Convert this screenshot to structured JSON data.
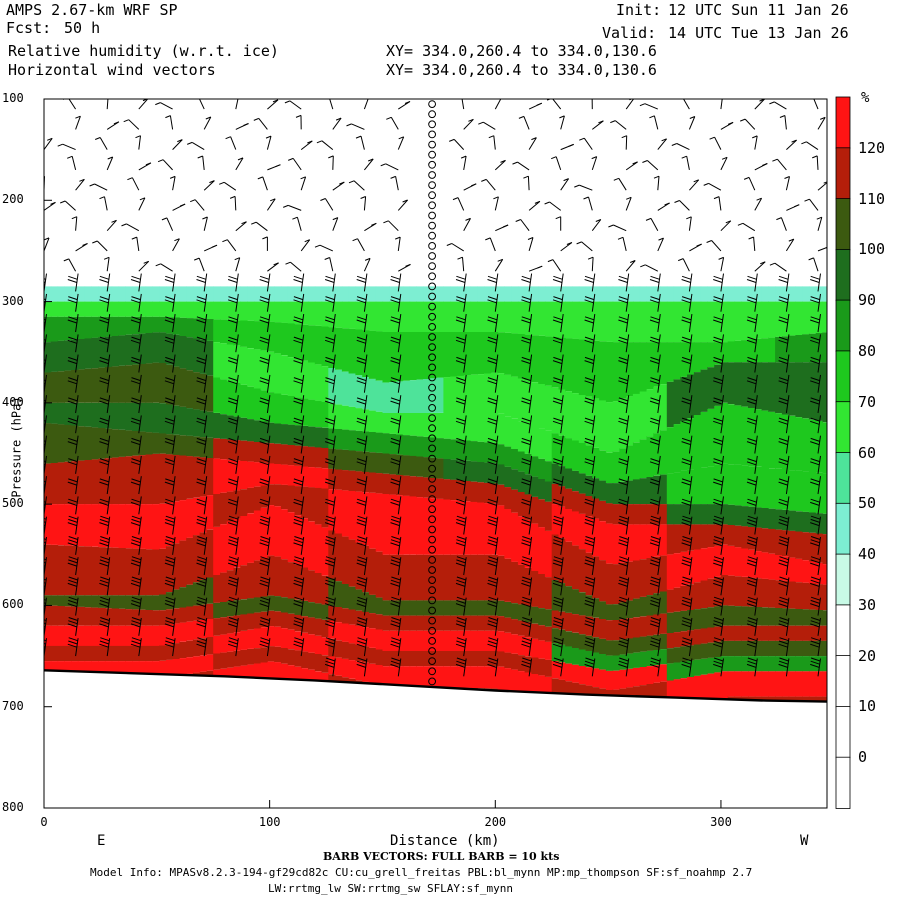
{
  "header": {
    "model_title": "AMPS 2.67-km WRF SP",
    "forecast_label": "Fcst:",
    "forecast_hours": "50 h",
    "init_label": "Init:",
    "init_time": "12 UTC Sun 11 Jan 26",
    "valid_label": "Valid:",
    "valid_time": "14 UTC Tue 13 Jan 26",
    "field_1": "Relative humidity (w.r.t. ice)",
    "field_2": "Horizontal wind vectors",
    "xy_1": "XY= 334.0,260.4 to 334.0,130.6",
    "xy_2": "XY= 334.0,260.4 to 334.0,130.6"
  },
  "footer": {
    "barb_note": "BARB VECTORS:  FULL BARB = 10 kts",
    "model_info_1": "Model Info: MPASv8.2.3-194-gf29cd82c CU:cu_grell_freitas PBL:bl_mynn MP:mp_thompson SF:sf_noahmp 2.7",
    "model_info_2": "LW:rrtmg_lw SW:rrtmg_sw SFLAY:sf_mynn"
  },
  "chart_data": {
    "type": "heatmap",
    "title": "Relative humidity (w.r.t. ice)",
    "xlabel": "Distance (km)",
    "ylabel": "Pressure (hPa)",
    "x_ticks": [
      "0",
      "100",
      "200",
      "300"
    ],
    "xlim": [
      0,
      347
    ],
    "y_ticks": [
      "100",
      "200",
      "300",
      "400",
      "500",
      "600",
      "700",
      "800"
    ],
    "ylim": [
      100,
      800
    ],
    "y_scale": "linear-inverted",
    "x_end_labels": {
      "left": "E",
      "right": "W"
    },
    "colorbar": {
      "unit": "%",
      "levels": [
        0,
        10,
        20,
        30,
        40,
        50,
        60,
        70,
        80,
        90,
        100,
        110,
        120
      ],
      "level_labels": [
        "0",
        "10",
        "20",
        "30",
        "40",
        "50",
        "60",
        "70",
        "80",
        "90",
        "100",
        "110",
        "120"
      ],
      "colors": [
        "#ffffff",
        "#ffffff",
        "#ffffff",
        "#ffffff",
        "#c8fae6",
        "#7deed2",
        "#4ee39a",
        "#32e632",
        "#1ec81e",
        "#1a9a1a",
        "#1e6e1e",
        "#3c5a10",
        "#b41e0a",
        "#ff1414"
      ]
    },
    "rh_profiles": [
      {
        "x": 0,
        "levels": [
          [
            285,
            40
          ],
          [
            300,
            60
          ],
          [
            315,
            80
          ],
          [
            340,
            90
          ],
          [
            370,
            100
          ],
          [
            400,
            90
          ],
          [
            420,
            100
          ],
          [
            460,
            110
          ],
          [
            500,
            120
          ],
          [
            540,
            110
          ],
          [
            590,
            100
          ],
          [
            600,
            110
          ],
          [
            620,
            120
          ],
          [
            640,
            110
          ],
          [
            655,
            130
          ],
          [
            668,
            110
          ]
        ]
      },
      {
        "x": 50,
        "levels": [
          [
            285,
            40
          ],
          [
            300,
            60
          ],
          [
            315,
            80
          ],
          [
            330,
            90
          ],
          [
            360,
            100
          ],
          [
            400,
            90
          ],
          [
            430,
            100
          ],
          [
            450,
            110
          ],
          [
            500,
            120
          ],
          [
            545,
            110
          ],
          [
            590,
            100
          ],
          [
            605,
            110
          ],
          [
            620,
            120
          ],
          [
            640,
            110
          ],
          [
            655,
            130
          ],
          [
            672,
            110
          ]
        ]
      },
      {
        "x": 100,
        "levels": [
          [
            285,
            40
          ],
          [
            300,
            60
          ],
          [
            320,
            70
          ],
          [
            350,
            60
          ],
          [
            390,
            70
          ],
          [
            420,
            90
          ],
          [
            440,
            110
          ],
          [
            460,
            120
          ],
          [
            480,
            110
          ],
          [
            500,
            120
          ],
          [
            550,
            110
          ],
          [
            590,
            100
          ],
          [
            605,
            110
          ],
          [
            620,
            120
          ],
          [
            640,
            110
          ],
          [
            655,
            130
          ],
          [
            675,
            110
          ]
        ]
      },
      {
        "x": 150,
        "levels": [
          [
            285,
            40
          ],
          [
            300,
            60
          ],
          [
            330,
            70
          ],
          [
            380,
            50
          ],
          [
            410,
            60
          ],
          [
            430,
            80
          ],
          [
            450,
            100
          ],
          [
            470,
            110
          ],
          [
            490,
            120
          ],
          [
            550,
            110
          ],
          [
            595,
            100
          ],
          [
            610,
            110
          ],
          [
            625,
            120
          ],
          [
            645,
            110
          ],
          [
            660,
            130
          ],
          [
            680,
            110
          ]
        ]
      },
      {
        "x": 200,
        "levels": [
          [
            285,
            40
          ],
          [
            300,
            60
          ],
          [
            330,
            70
          ],
          [
            370,
            60
          ],
          [
            410,
            60
          ],
          [
            440,
            80
          ],
          [
            460,
            90
          ],
          [
            480,
            110
          ],
          [
            500,
            120
          ],
          [
            550,
            110
          ],
          [
            595,
            100
          ],
          [
            610,
            110
          ],
          [
            625,
            120
          ],
          [
            645,
            110
          ],
          [
            660,
            130
          ],
          [
            682,
            110
          ]
        ]
      },
      {
        "x": 250,
        "levels": [
          [
            285,
            40
          ],
          [
            300,
            60
          ],
          [
            340,
            70
          ],
          [
            400,
            60
          ],
          [
            450,
            70
          ],
          [
            480,
            90
          ],
          [
            500,
            110
          ],
          [
            520,
            120
          ],
          [
            560,
            110
          ],
          [
            600,
            100
          ],
          [
            615,
            110
          ],
          [
            635,
            100
          ],
          [
            650,
            80
          ],
          [
            665,
            130
          ],
          [
            684,
            110
          ]
        ]
      },
      {
        "x": 300,
        "levels": [
          [
            285,
            40
          ],
          [
            300,
            60
          ],
          [
            340,
            70
          ],
          [
            360,
            90
          ],
          [
            400,
            70
          ],
          [
            460,
            70
          ],
          [
            500,
            90
          ],
          [
            520,
            110
          ],
          [
            540,
            120
          ],
          [
            570,
            110
          ],
          [
            600,
            100
          ],
          [
            620,
            110
          ],
          [
            635,
            100
          ],
          [
            650,
            80
          ],
          [
            665,
            130
          ],
          [
            690,
            110
          ]
        ]
      },
      {
        "x": 347,
        "levels": [
          [
            285,
            40
          ],
          [
            300,
            60
          ],
          [
            330,
            80
          ],
          [
            360,
            90
          ],
          [
            420,
            70
          ],
          [
            470,
            70
          ],
          [
            510,
            90
          ],
          [
            530,
            110
          ],
          [
            560,
            120
          ],
          [
            580,
            110
          ],
          [
            605,
            100
          ],
          [
            620,
            110
          ],
          [
            635,
            100
          ],
          [
            650,
            80
          ],
          [
            665,
            130
          ],
          [
            690,
            110
          ]
        ]
      }
    ],
    "terrain_pressure": [
      {
        "x": 0,
        "p": 664
      },
      {
        "x": 40,
        "p": 667
      },
      {
        "x": 80,
        "p": 670
      },
      {
        "x": 120,
        "p": 674
      },
      {
        "x": 160,
        "p": 679
      },
      {
        "x": 200,
        "p": 684
      },
      {
        "x": 240,
        "p": 688
      },
      {
        "x": 280,
        "p": 691
      },
      {
        "x": 320,
        "p": 694
      },
      {
        "x": 347,
        "p": 695
      }
    ],
    "section_midpoint_km": 172,
    "wind_barbs": {
      "note": "full barb = 10 kts",
      "x_km": [
        0,
        14,
        28,
        42,
        57,
        71,
        85,
        99,
        114,
        128,
        142,
        157,
        172,
        186,
        200,
        215,
        229,
        243,
        258,
        272,
        286,
        300,
        315,
        329,
        343
      ],
      "p_levels": [
        110,
        130,
        150,
        170,
        190,
        210,
        230,
        250,
        270,
        290,
        310,
        330,
        350,
        370,
        390,
        410,
        430,
        450,
        470,
        490,
        510,
        530,
        550,
        570,
        590,
        610,
        630,
        650,
        670
      ]
    }
  }
}
